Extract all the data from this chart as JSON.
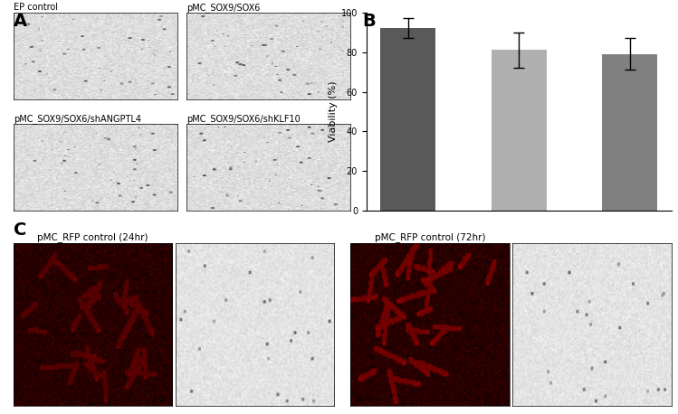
{
  "bar_values": [
    92,
    81,
    79
  ],
  "bar_errors": [
    5,
    9,
    8
  ],
  "bar_colors": [
    "#595959",
    "#b0b0b0",
    "#808080"
  ],
  "legend_labels": [
    "EP control",
    "pMC_SOX9/SOX6/shANGPTL4",
    "pMC_SOX9/SOX6/shKLF10"
  ],
  "ylabel": "Viability (%)",
  "ylim": [
    0,
    100
  ],
  "yticks": [
    0,
    20,
    40,
    60,
    80,
    100
  ],
  "panel_A_label": "A",
  "panel_B_label": "B",
  "panel_C_label": "C",
  "img_labels_top": [
    "EP control",
    "pMC_SOX9/SOX6"
  ],
  "img_labels_bottom": [
    "pMC_SOX9/SOX6/shANGPTL4",
    "pMC_SOX9/SOX6/shKLF10"
  ],
  "c_labels": [
    "pMC_RFP control (24hr)",
    "pMC_RFP control (72hr)"
  ],
  "bg_color": "#ffffff"
}
